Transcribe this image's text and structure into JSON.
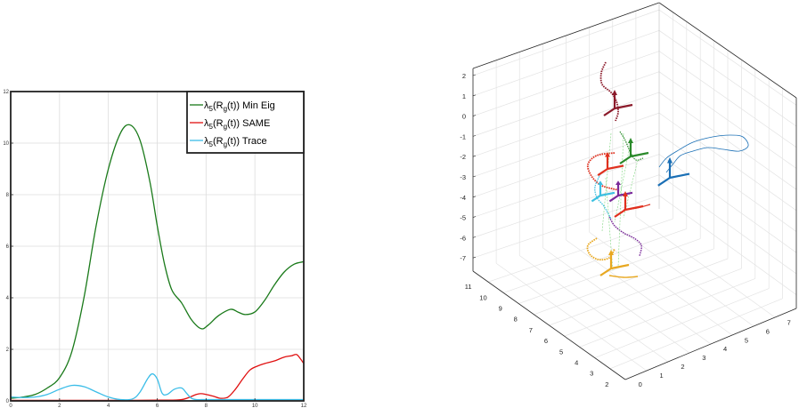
{
  "chart_data": [
    {
      "type": "line",
      "xlim": [
        0,
        12
      ],
      "ylim": [
        0,
        12
      ],
      "x_ticks": [
        "0",
        "2",
        "4",
        "6",
        "8",
        "10",
        "12"
      ],
      "y_ticks": [
        "0",
        "2",
        "4",
        "6",
        "8",
        "10",
        "12"
      ],
      "grid": true,
      "legend_position": "top-right",
      "legend_entries": [
        {
          "prefix": "λ",
          "sub1": "5",
          "mid": "(R",
          "sub2": "g",
          "tail": "(t))",
          "label": "Min Eig"
        },
        {
          "prefix": "λ",
          "sub1": "5",
          "mid": "(R",
          "sub2": "g",
          "tail": "(t))",
          "label": "SAME"
        },
        {
          "prefix": "λ",
          "sub1": "5",
          "mid": "(R",
          "sub2": "g",
          "tail": "(t))",
          "label": "Trace"
        }
      ],
      "series": [
        {
          "name": "λ5(Rg(t)) Min Eig",
          "color": "#1a7a1a",
          "x": [
            0,
            0.5,
            1,
            1.5,
            2,
            2.5,
            3,
            3.5,
            4,
            4.5,
            4.9,
            5.3,
            5.7,
            6,
            6.3,
            6.6,
            7,
            7.4,
            7.8,
            8.1,
            8.5,
            9,
            9.3,
            9.6,
            10,
            10.4,
            10.8,
            11.2,
            11.6,
            12
          ],
          "y": [
            0.1,
            0.15,
            0.25,
            0.5,
            0.9,
            1.9,
            4.0,
            6.8,
            9.0,
            10.4,
            10.7,
            10.1,
            8.5,
            6.8,
            5.3,
            4.3,
            3.8,
            3.15,
            2.8,
            2.95,
            3.3,
            3.55,
            3.45,
            3.35,
            3.45,
            3.9,
            4.5,
            5.0,
            5.3,
            5.4
          ]
        },
        {
          "name": "λ5(Rg(t)) SAME",
          "color": "#e01010",
          "x": [
            0,
            1,
            2,
            3,
            4,
            5,
            6,
            7,
            7.6,
            7.8,
            8,
            8.3,
            8.6,
            8.9,
            9.2,
            9.5,
            9.8,
            10.1,
            10.4,
            10.8,
            11.2,
            11.5,
            11.7,
            11.85,
            12
          ],
          "y": [
            0.02,
            0.02,
            0.02,
            0.02,
            0.02,
            0.02,
            0.03,
            0.05,
            0.25,
            0.28,
            0.25,
            0.18,
            0.1,
            0.15,
            0.45,
            0.85,
            1.2,
            1.35,
            1.45,
            1.55,
            1.7,
            1.75,
            1.8,
            1.65,
            1.45
          ]
        },
        {
          "name": "λ5(Rg(t)) Trace",
          "color": "#3bbde8",
          "x": [
            0,
            0.5,
            1,
            1.5,
            2,
            2.5,
            3,
            3.5,
            4,
            4.5,
            5,
            5.3,
            5.6,
            5.8,
            6,
            6.2,
            6.4,
            6.7,
            7,
            7.2,
            7.4,
            7.6,
            7.8,
            8,
            9,
            10,
            11,
            12
          ],
          "y": [
            0.15,
            0.13,
            0.15,
            0.25,
            0.45,
            0.6,
            0.55,
            0.35,
            0.15,
            0.05,
            0.08,
            0.35,
            0.85,
            1.05,
            0.85,
            0.3,
            0.25,
            0.45,
            0.5,
            0.3,
            0.1,
            0.05,
            0.05,
            0.05,
            0.05,
            0.05,
            0.05,
            0.05
          ]
        }
      ]
    },
    {
      "type": "line",
      "subtype": "3d-trajectory",
      "z_ticks": [
        "2",
        "1",
        "0",
        "-1",
        "-2",
        "-3",
        "-4",
        "-5",
        "-6",
        "-7"
      ],
      "y_ticks": [
        "11",
        "10",
        "9",
        "8",
        "7",
        "6",
        "5",
        "4",
        "3",
        "2"
      ],
      "x_ticks": [
        "0",
        "1",
        "2",
        "3",
        "4",
        "5",
        "6",
        "7"
      ],
      "zlim": [
        -7,
        2
      ],
      "ylim": [
        2,
        11
      ],
      "xlim": [
        0,
        7
      ],
      "grid": true,
      "series": [
        {
          "name": "",
          "color": "#8b1a2a"
        },
        {
          "name": "",
          "color": "#2a8a2a"
        },
        {
          "name": "",
          "color": "#e0301e"
        },
        {
          "name": "",
          "color": "#1a6fb5"
        },
        {
          "name": "",
          "color": "#7a2a9a"
        },
        {
          "name": "",
          "color": "#3cc0e0"
        },
        {
          "name": "",
          "color": "#e8a820"
        }
      ]
    }
  ]
}
